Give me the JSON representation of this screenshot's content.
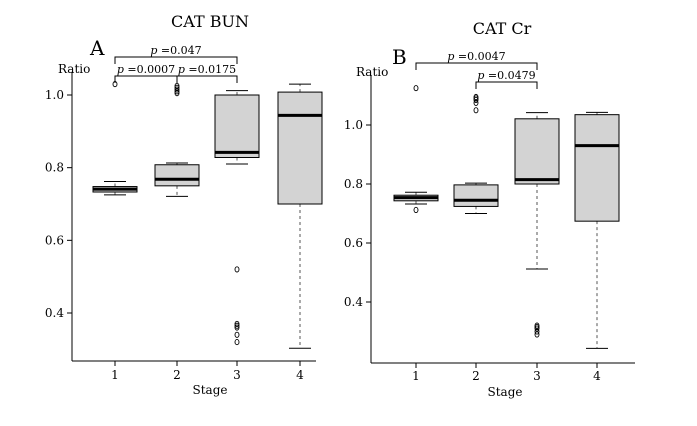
{
  "chart_data": [
    {
      "type": "box",
      "panel_label": "A",
      "title": "CAT BUN",
      "xlabel": "Stage",
      "ylabel": "Ratio",
      "categories": [
        "1",
        "2",
        "3",
        "4"
      ],
      "yticks": [
        "0.4",
        "0.6",
        "0.8",
        "1.0"
      ],
      "ylim": [
        0.3,
        1.06
      ],
      "boxes": [
        {
          "category": "1",
          "whisker_low": 0.725,
          "q1": 0.733,
          "median": 0.741,
          "q3": 0.748,
          "whisker_high": 0.762,
          "outliers": [
            1.03
          ]
        },
        {
          "category": "2",
          "whisker_low": 0.721,
          "q1": 0.75,
          "median": 0.768,
          "q3": 0.808,
          "whisker_high": 0.813,
          "outliers": [
            1.005,
            1.01,
            1.015,
            1.02,
            1.025
          ]
        },
        {
          "category": "3",
          "whisker_low": 0.81,
          "q1": 0.828,
          "median": 0.842,
          "q3": 1.0,
          "whisker_high": 1.012,
          "outliers": [
            0.52,
            0.37,
            0.365,
            0.36,
            0.34,
            0.32
          ]
        },
        {
          "category": "4",
          "whisker_low": 0.303,
          "q1": 0.7,
          "median": 0.944,
          "q3": 1.008,
          "whisker_high": 1.03,
          "outliers": []
        }
      ],
      "comparisons": [
        {
          "groups": [
            "1",
            "3"
          ],
          "label": "p =0.047"
        },
        {
          "groups": [
            "1",
            "2"
          ],
          "label": "p =0.0007"
        },
        {
          "groups": [
            "2",
            "3"
          ],
          "label": "p =0.0175"
        }
      ]
    },
    {
      "type": "box",
      "panel_label": "B",
      "title": "CAT Cr",
      "xlabel": "Stage",
      "ylabel": "Ratio",
      "categories": [
        "1",
        "2",
        "3",
        "4"
      ],
      "yticks": [
        "0.4",
        "0.6",
        "0.8",
        "1.0"
      ],
      "ylim": [
        0.21,
        1.19
      ],
      "boxes": [
        {
          "category": "1",
          "whisker_low": 0.732,
          "q1": 0.743,
          "median": 0.754,
          "q3": 0.762,
          "whisker_high": 0.772,
          "outliers": [
            1.125,
            0.712
          ]
        },
        {
          "category": "2",
          "whisker_low": 0.7,
          "q1": 0.724,
          "median": 0.745,
          "q3": 0.797,
          "whisker_high": 0.803,
          "outliers": [
            1.05,
            1.075,
            1.085,
            1.09,
            1.095
          ]
        },
        {
          "category": "3",
          "whisker_low": 0.512,
          "q1": 0.8,
          "median": 0.815,
          "q3": 1.021,
          "whisker_high": 1.042,
          "outliers": [
            0.32,
            0.315,
            0.31,
            0.3,
            0.29
          ]
        },
        {
          "category": "4",
          "whisker_low": 0.243,
          "q1": 0.674,
          "median": 0.93,
          "q3": 1.035,
          "whisker_high": 1.043,
          "outliers": []
        }
      ],
      "comparisons": [
        {
          "groups": [
            "1",
            "3"
          ],
          "label": "p =0.0047"
        },
        {
          "groups": [
            "2",
            "3"
          ],
          "label": "p =0.0479"
        }
      ]
    }
  ],
  "style": {
    "box_fill": "#d3d3d3",
    "stroke": "#000000",
    "whisker_stroke": "#555555",
    "axis": "#000000"
  }
}
